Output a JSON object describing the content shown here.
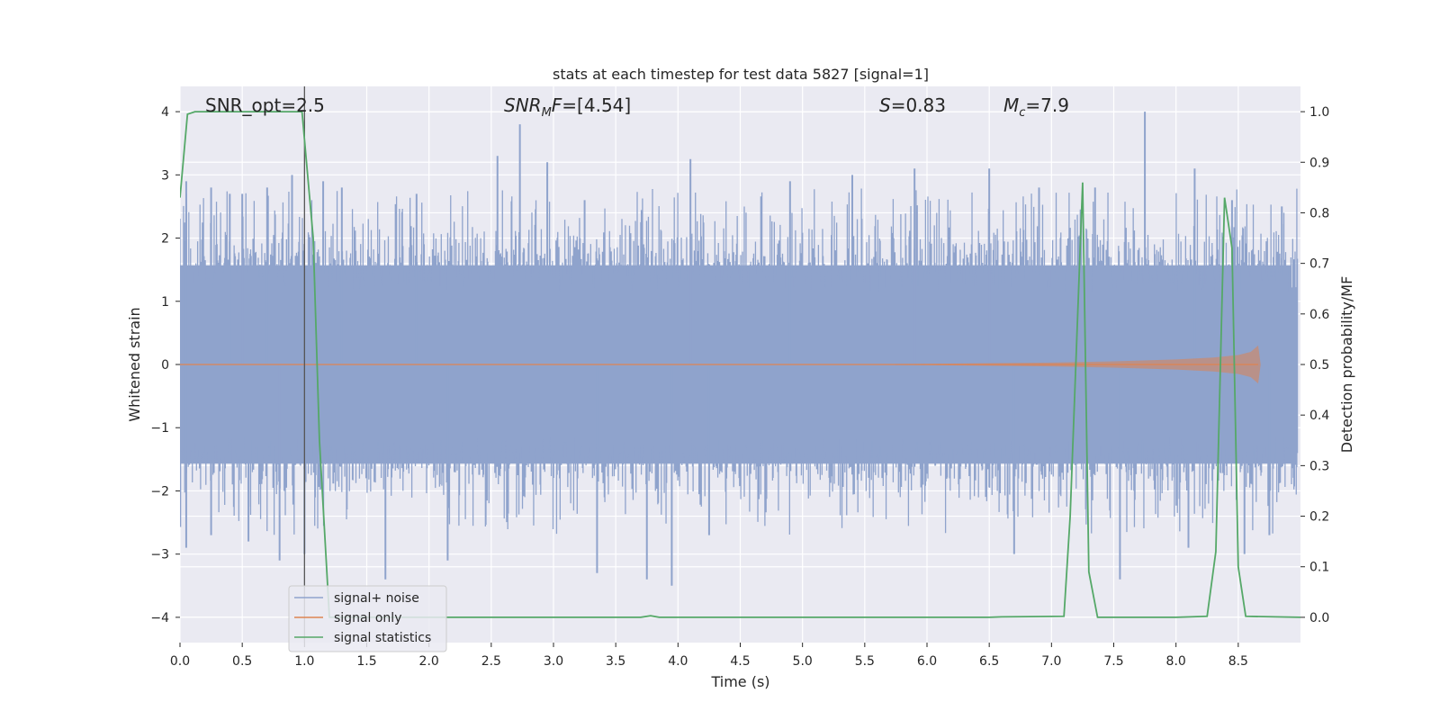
{
  "chart_data": {
    "type": "line",
    "title": "stats at each timestep for test data 5827 [signal=1]",
    "xlabel": "Time (s)",
    "ylabel_left": "Whitened strain",
    "ylabel_right": "Detection probability/MF",
    "xlim": [
      0.0,
      9.0
    ],
    "ylim_left": [
      -4.4,
      4.4
    ],
    "ylim_right": [
      -0.05,
      1.05
    ],
    "xticks": [
      "0.0",
      "0.5",
      "1.0",
      "1.5",
      "2.0",
      "2.5",
      "3.0",
      "3.5",
      "4.0",
      "4.5",
      "5.0",
      "5.5",
      "6.0",
      "6.5",
      "7.0",
      "7.5",
      "8.0",
      "8.5"
    ],
    "yticks_left": [
      "4",
      "3",
      "2",
      "1",
      "0",
      "−1",
      "−2",
      "−3",
      "−4"
    ],
    "yticks_right": [
      "1.0",
      "0.9",
      "0.8",
      "0.7",
      "0.6",
      "0.5",
      "0.4",
      "0.3",
      "0.2",
      "0.1",
      "0.0"
    ],
    "grid": true,
    "legend_position": "lower-left",
    "annotations": {
      "snr_opt": "SNR_opt=2.5",
      "snr_mf": "=[4.54]",
      "s_stat": "=0.83",
      "mc": "=7.9"
    },
    "vertical_marker_x": 1.0,
    "colors": {
      "noise": "#8fa3cc",
      "signal": "#dd8452",
      "stats": "#55a868",
      "marker": "#555555",
      "background": "#eaeaf2",
      "grid": "#ffffff"
    },
    "series": [
      {
        "name": "signal+ noise",
        "axis": "left",
        "description_envelope": {
          "upper_typical": 1.6,
          "lower_typical": -1.6
        },
        "peaks_upper": [
          [
            0.05,
            2.9
          ],
          [
            0.25,
            2.8
          ],
          [
            0.4,
            2.7
          ],
          [
            0.5,
            2.7
          ],
          [
            0.7,
            2.8
          ],
          [
            0.9,
            3.0
          ],
          [
            1.15,
            2.9
          ],
          [
            1.3,
            2.8
          ],
          [
            1.9,
            2.7
          ],
          [
            2.55,
            3.3
          ],
          [
            2.73,
            3.8
          ],
          [
            2.95,
            3.2
          ],
          [
            3.25,
            2.6
          ],
          [
            4.1,
            3.25
          ],
          [
            4.9,
            2.9
          ],
          [
            5.4,
            3.0
          ],
          [
            5.9,
            3.1
          ],
          [
            6.5,
            3.1
          ],
          [
            6.9,
            2.8
          ],
          [
            7.35,
            2.8
          ],
          [
            7.75,
            4.0
          ],
          [
            8.15,
            3.1
          ],
          [
            8.45,
            2.6
          ],
          [
            8.85,
            2.5
          ]
        ],
        "peaks_lower": [
          [
            0.05,
            -2.9
          ],
          [
            0.25,
            -2.7
          ],
          [
            0.55,
            -2.8
          ],
          [
            0.8,
            -3.1
          ],
          [
            1.0,
            -3.0
          ],
          [
            1.65,
            -3.4
          ],
          [
            2.15,
            -3.1
          ],
          [
            3.35,
            -3.3
          ],
          [
            3.75,
            -3.4
          ],
          [
            3.95,
            -3.5
          ],
          [
            4.25,
            -2.7
          ],
          [
            6.7,
            -3.0
          ],
          [
            7.55,
            -3.4
          ],
          [
            8.1,
            -2.9
          ],
          [
            8.55,
            -3.0
          ],
          [
            8.75,
            -2.7
          ]
        ]
      },
      {
        "name": "signal only",
        "axis": "left",
        "x": [
          0.0,
          5.0,
          6.0,
          7.0,
          7.5,
          8.0,
          8.3,
          8.5,
          8.6,
          8.66,
          8.68
        ],
        "amplitude": [
          0.0,
          0.0,
          0.01,
          0.03,
          0.05,
          0.08,
          0.11,
          0.15,
          0.2,
          0.3,
          0.0
        ]
      },
      {
        "name": "signal statistics",
        "axis": "right",
        "x": [
          0.0,
          0.06,
          0.12,
          0.5,
          0.8,
          0.98,
          1.07,
          1.12,
          1.2,
          1.28,
          2.0,
          3.0,
          3.7,
          3.78,
          3.85,
          4.5,
          6.5,
          6.6,
          7.1,
          7.15,
          7.25,
          7.3,
          7.37,
          8.0,
          8.25,
          8.32,
          8.39,
          8.45,
          8.5,
          8.56,
          9.0
        ],
        "y": [
          0.83,
          0.995,
          1.0,
          1.0,
          1.0,
          1.0,
          0.75,
          0.35,
          0.0,
          0.0,
          0.0,
          0.0,
          0.0,
          0.003,
          0.0,
          0.0,
          0.0,
          0.001,
          0.002,
          0.2,
          0.86,
          0.09,
          0.0,
          0.0,
          0.002,
          0.13,
          0.83,
          0.73,
          0.1,
          0.002,
          0.0
        ]
      }
    ]
  }
}
